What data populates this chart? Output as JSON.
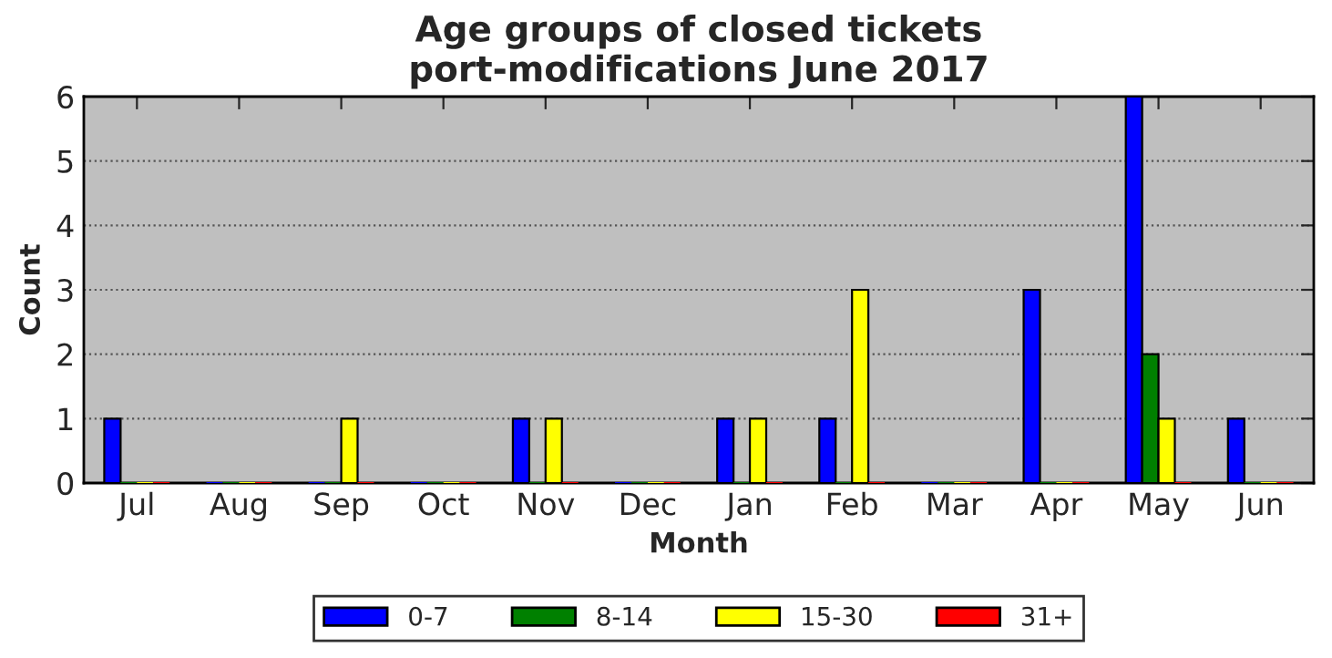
{
  "chart_data": {
    "type": "bar",
    "title": "Age groups of closed tickets\nport-modifications June 2017",
    "xlabel": "Month",
    "ylabel": "Count",
    "categories": [
      "Jul",
      "Aug",
      "Sep",
      "Oct",
      "Nov",
      "Dec",
      "Jan",
      "Feb",
      "Mar",
      "Apr",
      "May",
      "Jun"
    ],
    "series": [
      {
        "name": "0-7",
        "color": "#0000ff",
        "values": [
          1,
          0,
          0,
          0,
          1,
          0,
          1,
          1,
          0,
          3,
          6,
          1
        ]
      },
      {
        "name": "8-14",
        "color": "#008000",
        "values": [
          0,
          0,
          0,
          0,
          0,
          0,
          0,
          0,
          0,
          0,
          2,
          0
        ]
      },
      {
        "name": "15-30",
        "color": "#ffff00",
        "values": [
          0,
          0,
          1,
          0,
          1,
          0,
          1,
          3,
          0,
          0,
          1,
          0
        ]
      },
      {
        "name": "31+",
        "color": "#ff0000",
        "values": [
          0,
          0,
          0,
          0,
          0,
          0,
          0,
          0,
          0,
          0,
          0,
          0
        ]
      }
    ],
    "ylim": [
      0,
      6
    ],
    "yticks": [
      0,
      1,
      2,
      3,
      4,
      5,
      6
    ],
    "grid": "y",
    "legend": "bottom"
  }
}
